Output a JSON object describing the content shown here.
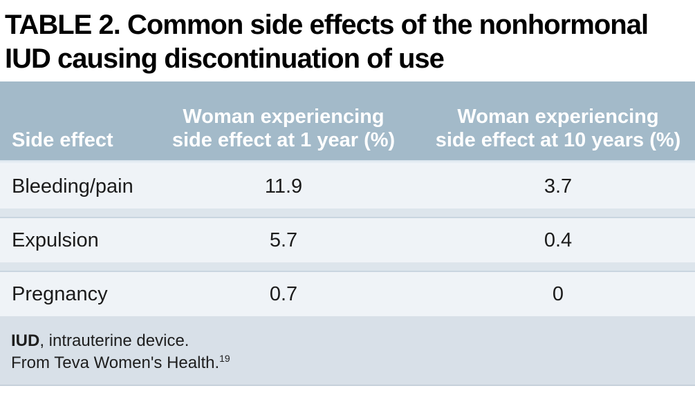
{
  "title": {
    "line1": "TABLE 2. Common side effects of the nonhormonal",
    "line2": "IUD causing discontinuation of use"
  },
  "table": {
    "header": {
      "col1": "Side effect",
      "col2_line1": "Woman experiencing",
      "col2_line2": "side effect at 1 year (%)",
      "col3_line1": "Woman experiencing",
      "col3_line2": "side effect at 10 years (%)"
    },
    "rows": [
      {
        "side_effect": "Bleeding/pain",
        "at_1_year": "11.9",
        "at_10_years": "3.7"
      },
      {
        "side_effect": "Expulsion",
        "at_1_year": "5.7",
        "at_10_years": "0.4"
      },
      {
        "side_effect": "Pregnancy",
        "at_1_year": "0.7",
        "at_10_years": "0"
      }
    ]
  },
  "footnotes": {
    "abbreviation_term": "IUD",
    "abbreviation_rest": ", intrauterine device.",
    "source_text": "From Teva Women's Health.",
    "source_ref": "19"
  },
  "colors": {
    "header_bg": "#a3bac9",
    "header_text": "#ffffff",
    "row_bg": "#eff3f7",
    "divider_bg": "#dde5ec",
    "divider_edge": "#c9d5e0",
    "footer_bg": "#d8e0e8",
    "title_text": "#000000"
  }
}
